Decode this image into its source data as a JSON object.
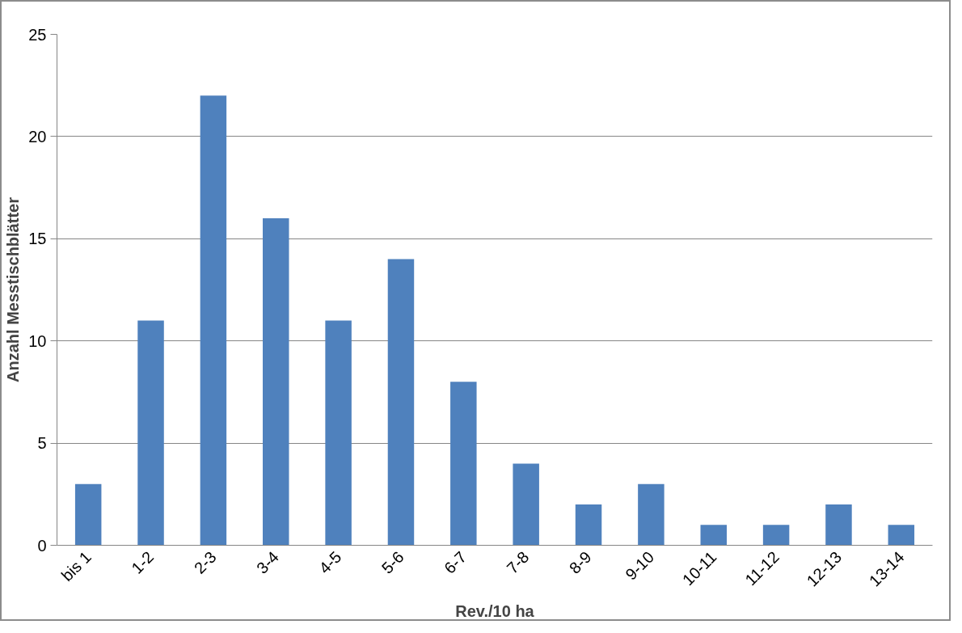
{
  "chart_data": {
    "type": "bar",
    "xlabel": "Rev./10 ha",
    "ylabel": "Anzahl Messtischblätter",
    "categories": [
      "bis 1",
      "1-2",
      "2-3",
      "3-4",
      "4-5",
      "5-6",
      "6-7",
      "7-8",
      "8-9",
      "9-10",
      "10-11",
      "11-12",
      "12-13",
      "13-14"
    ],
    "values": [
      3,
      11,
      22,
      16,
      11,
      14,
      8,
      4,
      2,
      3,
      1,
      1,
      2,
      1
    ],
    "color": "#4f81bd",
    "ylim": [
      0,
      25
    ],
    "yticks": [
      0,
      5,
      10,
      15,
      20,
      25
    ],
    "grid": "y"
  }
}
